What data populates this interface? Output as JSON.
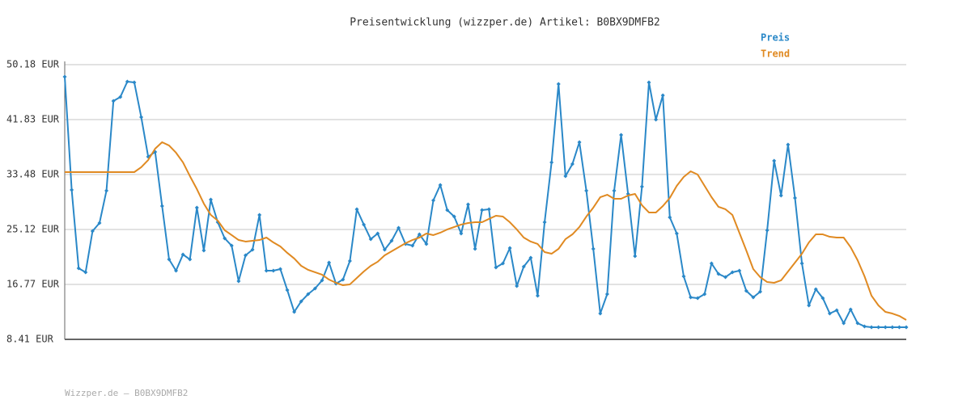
{
  "chart_data": {
    "type": "line",
    "title": "Preisentwicklung (wizzper.de) Artikel: B0BX9DMFB2",
    "footer": "Wizzper.de – B0BX9DMFB2",
    "ylim": [
      8.41,
      50.18
    ],
    "yticks": [
      {
        "value": 8.41,
        "label": "8.41 EUR"
      },
      {
        "value": 16.77,
        "label": "16.77 EUR"
      },
      {
        "value": 25.12,
        "label": "25.12 EUR"
      },
      {
        "value": 33.48,
        "label": "33.48 EUR"
      },
      {
        "value": 41.83,
        "label": "41.83 EUR"
      },
      {
        "value": 50.18,
        "label": "50.18 EUR"
      }
    ],
    "grid": true,
    "legend": "top-right",
    "series": [
      {
        "name": "Preis",
        "color": "#2a88c8",
        "markers": true,
        "values": [
          48.34,
          31.14,
          19.22,
          18.61,
          24.87,
          26.1,
          31.02,
          44.65,
          45.27,
          47.6,
          47.48,
          42.2,
          36.18,
          36.91,
          28.68,
          20.57,
          18.85,
          21.31,
          20.57,
          28.44,
          21.92,
          29.66,
          26.22,
          23.77,
          22.66,
          17.26,
          21.19,
          22.05,
          27.33,
          18.85,
          18.85,
          19.1,
          15.91,
          12.59,
          14.19,
          15.29,
          16.15,
          17.38,
          20.08,
          16.89,
          17.5,
          20.33,
          28.19,
          25.86,
          23.65,
          24.5,
          22.05,
          23.4,
          25.37,
          22.91,
          22.66,
          24.38,
          22.91,
          29.54,
          31.88,
          28.07,
          27.08,
          24.5,
          28.93,
          22.17,
          28.07,
          28.19,
          19.34,
          19.96,
          22.29,
          16.52,
          19.47,
          20.82,
          15.05,
          26.22,
          35.32,
          47.23,
          33.23,
          35.07,
          38.39,
          31.02,
          22.17,
          12.34,
          15.29,
          31.02,
          39.49,
          30.52,
          21.07,
          31.63,
          47.48,
          41.83,
          45.51,
          26.96,
          24.5,
          17.99,
          14.8,
          14.68,
          15.29,
          19.96,
          18.36,
          17.87,
          18.61,
          18.85,
          15.78,
          14.8,
          15.66,
          24.99,
          35.56,
          30.28,
          38.02,
          29.91,
          19.96,
          13.57,
          16.03,
          14.68,
          12.34,
          12.83,
          10.87,
          12.96,
          10.87,
          10.38,
          10.25,
          10.25,
          10.25,
          10.25,
          10.25,
          10.25
        ]
      },
      {
        "name": "Trend",
        "color": "#e08a22",
        "markers": false,
        "values": [
          33.84,
          33.84,
          33.84,
          33.84,
          33.84,
          33.84,
          33.84,
          33.84,
          33.84,
          33.84,
          33.84,
          34.58,
          35.68,
          37.4,
          38.39,
          37.89,
          36.79,
          35.32,
          33.23,
          31.26,
          29.05,
          27.33,
          26.47,
          25.0,
          24.26,
          23.52,
          23.28,
          23.4,
          23.52,
          23.89,
          23.15,
          22.54,
          21.56,
          20.7,
          19.59,
          18.98,
          18.61,
          18.24,
          17.5,
          17.01,
          16.64,
          16.77,
          17.75,
          18.73,
          19.59,
          20.21,
          21.19,
          21.8,
          22.42,
          23.03,
          23.52,
          23.89,
          24.5,
          24.26,
          24.63,
          25.12,
          25.49,
          25.86,
          26.1,
          26.22,
          26.22,
          26.72,
          27.21,
          27.08,
          26.22,
          25.12,
          23.89,
          23.28,
          22.91,
          21.68,
          21.43,
          22.17,
          23.65,
          24.38,
          25.49,
          27.08,
          28.44,
          30.03,
          30.4,
          29.79,
          29.79,
          30.28,
          30.52,
          28.8,
          27.7,
          27.7,
          28.68,
          29.91,
          31.75,
          33.1,
          33.96,
          33.47,
          31.75,
          30.03,
          28.56,
          28.19,
          27.33,
          24.63,
          21.92,
          19.1,
          17.87,
          17.13,
          17.01,
          17.38,
          18.73,
          20.08,
          21.43,
          23.15,
          24.38,
          24.38,
          24.01,
          23.89,
          23.89,
          22.42,
          20.45,
          17.99,
          15.05,
          13.57,
          12.59,
          12.34,
          11.97,
          11.36
        ]
      }
    ]
  }
}
